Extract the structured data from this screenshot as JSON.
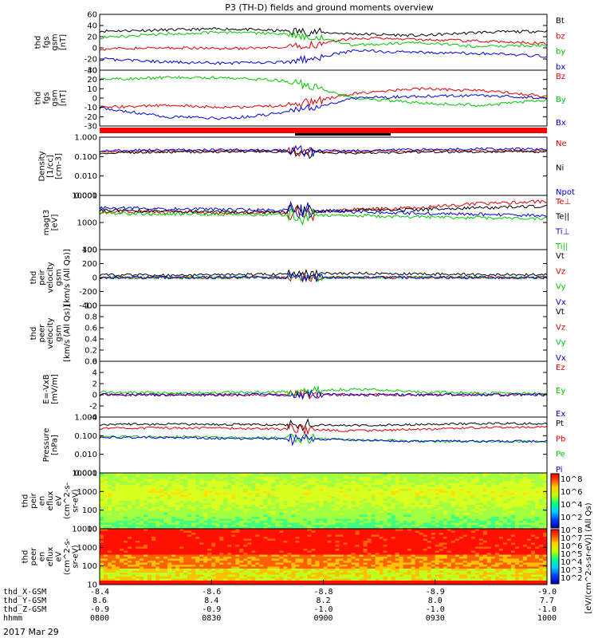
{
  "title": "P3 (TH-D) fields and ground moments overview",
  "date_label": "2017 Mar 29",
  "colors": {
    "black": "#000000",
    "red": "#e00000",
    "green": "#00c800",
    "blue": "#0000e0"
  },
  "ephemeris": {
    "row_labels": [
      "thd_X-GSM",
      "thd_Y-GSM",
      "thd_Z-GSM",
      "hhmm"
    ],
    "columns": [
      {
        "values": [
          "-8.4",
          "8.6",
          "-0.9",
          "0800"
        ]
      },
      {
        "values": [
          "-8.6",
          "8.4",
          "-0.9",
          "0830"
        ]
      },
      {
        "values": [
          "-8.8",
          "8.2",
          "-1.0",
          "0900"
        ]
      },
      {
        "values": [
          "-8.9",
          "8.0",
          "-1.0",
          "0930"
        ]
      },
      {
        "values": [
          "-9.0",
          "7.7",
          "-1.0",
          "1000"
        ]
      }
    ]
  },
  "colorbar": {
    "label": "[eV/(cm^2-s-sr-eV)] (All Qs)",
    "top_ticks": [
      "10^8",
      "10^6",
      "10^4",
      "10^2"
    ],
    "bottom_ticks": [
      "10^8",
      "10^7",
      "10^6",
      "10^5",
      "10^4",
      "10^3",
      "10^2"
    ]
  },
  "chart_data": [
    {
      "type": "line",
      "ylabel": [
        "thd",
        "fgs",
        "gsm",
        "[nT]"
      ],
      "ylim": [
        -40,
        60
      ],
      "ticks": [
        "60",
        "40",
        "20",
        "0",
        "-20",
        "-40"
      ],
      "series": [
        {
          "name": "Bt",
          "color": "black",
          "trend": [
            30,
            32,
            34,
            30,
            25,
            22,
            28,
            30
          ]
        },
        {
          "name": "bz",
          "color": "red",
          "trend": [
            -2,
            0,
            -1,
            0,
            18,
            15,
            12,
            8
          ]
        },
        {
          "name": "by",
          "color": "green",
          "trend": [
            18,
            25,
            28,
            25,
            5,
            10,
            2,
            5
          ]
        },
        {
          "name": "bx",
          "color": "blue",
          "trend": [
            -20,
            -25,
            -28,
            -25,
            -5,
            -8,
            -10,
            -15
          ]
        }
      ]
    },
    {
      "type": "line",
      "ylabel": [
        "thd",
        "fgs",
        "gsm",
        "[nT]"
      ],
      "ylim": [
        -30,
        30
      ],
      "ticks": [
        "30",
        "20",
        "10",
        "0",
        "-10",
        "-20",
        "-30"
      ],
      "series": [
        {
          "name": "Bz",
          "color": "red",
          "trend": [
            -10,
            -8,
            -10,
            -8,
            5,
            10,
            8,
            2
          ]
        },
        {
          "name": "By",
          "color": "green",
          "trend": [
            20,
            22,
            22,
            18,
            0,
            -5,
            -8,
            -2
          ]
        },
        {
          "name": "Bx",
          "color": "blue",
          "trend": [
            -10,
            -20,
            -22,
            -15,
            0,
            2,
            3,
            0
          ]
        }
      ]
    },
    {
      "type": "line",
      "ylabel": [
        "Density",
        "[1/cc]",
        "[cm-3]"
      ],
      "ylim": [
        0.001,
        1
      ],
      "ticks": [
        "1.000",
        "0.100",
        "0.010",
        "0.001"
      ],
      "series": [
        {
          "name": "Ne",
          "color": "red",
          "trend": [
            0.18,
            0.2,
            0.2,
            0.2,
            0.18,
            0.2,
            0.2,
            0.2
          ]
        },
        {
          "name": "Ni",
          "color": "black",
          "trend": [
            0.15,
            0.17,
            0.18,
            0.17,
            0.15,
            0.17,
            0.18,
            0.18
          ]
        },
        {
          "name": "Npot",
          "color": "blue",
          "trend": [
            0.2,
            0.22,
            0.22,
            0.21,
            0.2,
            0.23,
            0.25,
            0.24
          ]
        }
      ]
    },
    {
      "type": "line",
      "ylabel": [
        "magt3",
        "[eV]"
      ],
      "ylim": [
        100,
        10000
      ],
      "ticks": [
        "10000",
        "1000",
        "100"
      ],
      "series": [
        {
          "name": "Te⊥",
          "color": "red",
          "trend": [
            2500,
            2400,
            2200,
            2300,
            3000,
            3500,
            5000,
            6000
          ]
        },
        {
          "name": "Te||",
          "color": "black",
          "trend": [
            2800,
            2600,
            2500,
            2400,
            2800,
            3000,
            3500,
            4000
          ]
        },
        {
          "name": "Ti⊥",
          "color": "blue",
          "trend": [
            3500,
            3200,
            3000,
            2800,
            2500,
            2200,
            2000,
            1800
          ]
        },
        {
          "name": "Ti||",
          "color": "green",
          "trend": [
            2200,
            2100,
            2000,
            1900,
            1800,
            1600,
            1500,
            1400
          ]
        }
      ]
    },
    {
      "type": "line",
      "ylabel": [
        "thd",
        "peir",
        "velocity",
        "gsm",
        "[km/s (All Qs)]"
      ],
      "ylim": [
        -400,
        400
      ],
      "ticks": [
        "400",
        "200",
        "0",
        "-200",
        "-400"
      ],
      "series": [
        {
          "name": "Vt",
          "color": "black",
          "trend": [
            40,
            30,
            40,
            50,
            60,
            50,
            40,
            40
          ]
        },
        {
          "name": "Vz",
          "color": "red",
          "trend": [
            0,
            0,
            0,
            0,
            0,
            0,
            0,
            0
          ]
        },
        {
          "name": "Vy",
          "color": "green",
          "trend": [
            0,
            0,
            0,
            0,
            0,
            0,
            0,
            0
          ]
        },
        {
          "name": "Vx",
          "color": "blue",
          "trend": [
            0,
            0,
            0,
            0,
            0,
            0,
            0,
            0
          ]
        }
      ]
    },
    {
      "type": "line",
      "ylabel": [
        "thd",
        "peer",
        "velocity",
        "gsm",
        "[km/s (All Qs)]"
      ],
      "ylim": [
        0,
        1
      ],
      "ticks": [
        "1.0",
        "0.8",
        "0.6",
        "0.4",
        "0.2",
        "0.0"
      ],
      "series": [
        {
          "name": "Vt",
          "color": "black",
          "trend": []
        },
        {
          "name": "Vz",
          "color": "red",
          "trend": []
        },
        {
          "name": "Vy",
          "color": "green",
          "trend": []
        },
        {
          "name": "Vx",
          "color": "blue",
          "trend": []
        }
      ]
    },
    {
      "type": "line",
      "ylabel": [
        "E=-VxB",
        "[mV/m]"
      ],
      "ylim": [
        -4,
        6
      ],
      "ticks": [
        "6",
        "4",
        "2",
        "0",
        "-2",
        "-4"
      ],
      "series": [
        {
          "name": "Ez",
          "color": "red",
          "trend": [
            0,
            0,
            0,
            0,
            0,
            0,
            0,
            0
          ]
        },
        {
          "name": "Ey",
          "color": "green",
          "trend": [
            0.5,
            0.3,
            0.4,
            0.5,
            1,
            0.5,
            0.3,
            0.2
          ]
        },
        {
          "name": "Ex",
          "color": "blue",
          "trend": [
            0,
            0,
            0,
            0,
            0,
            0,
            0,
            0
          ]
        }
      ]
    },
    {
      "type": "line",
      "ylabel": [
        "Pressure",
        "[nPa]"
      ],
      "ylim": [
        0.001,
        1
      ],
      "ticks": [
        "1.000",
        "0.100",
        "0.010",
        "0.001"
      ],
      "series": [
        {
          "name": "Pt",
          "color": "black",
          "trend": [
            0.4,
            0.42,
            0.4,
            0.38,
            0.35,
            0.4,
            0.45,
            0.45
          ]
        },
        {
          "name": "Pb",
          "color": "red",
          "trend": [
            0.25,
            0.26,
            0.25,
            0.22,
            0.18,
            0.22,
            0.28,
            0.3
          ]
        },
        {
          "name": "Pe",
          "color": "green",
          "trend": [
            0.09,
            0.09,
            0.08,
            0.08,
            0.06,
            0.05,
            0.05,
            0.05
          ]
        },
        {
          "name": "Pi",
          "color": "blue",
          "trend": [
            0.08,
            0.08,
            0.07,
            0.07,
            0.06,
            0.05,
            0.05,
            0.05
          ]
        }
      ]
    },
    {
      "type": "heatmap",
      "ylabel": [
        "thd",
        "peir",
        "en",
        "eflux",
        "eV",
        "(cm^2-s-",
        "sr-eV)"
      ],
      "ylim": [
        10,
        10000
      ],
      "ticks": [
        "10000",
        "1000",
        "100",
        "10"
      ]
    },
    {
      "type": "heatmap",
      "ylabel": [
        "thd",
        "peer",
        "en",
        "eflux",
        "eV",
        "(cm^2-s-",
        "sr-eV)"
      ],
      "ylim": [
        10,
        10000
      ],
      "ticks": [
        "10000",
        "1000",
        "100",
        "10"
      ]
    }
  ]
}
